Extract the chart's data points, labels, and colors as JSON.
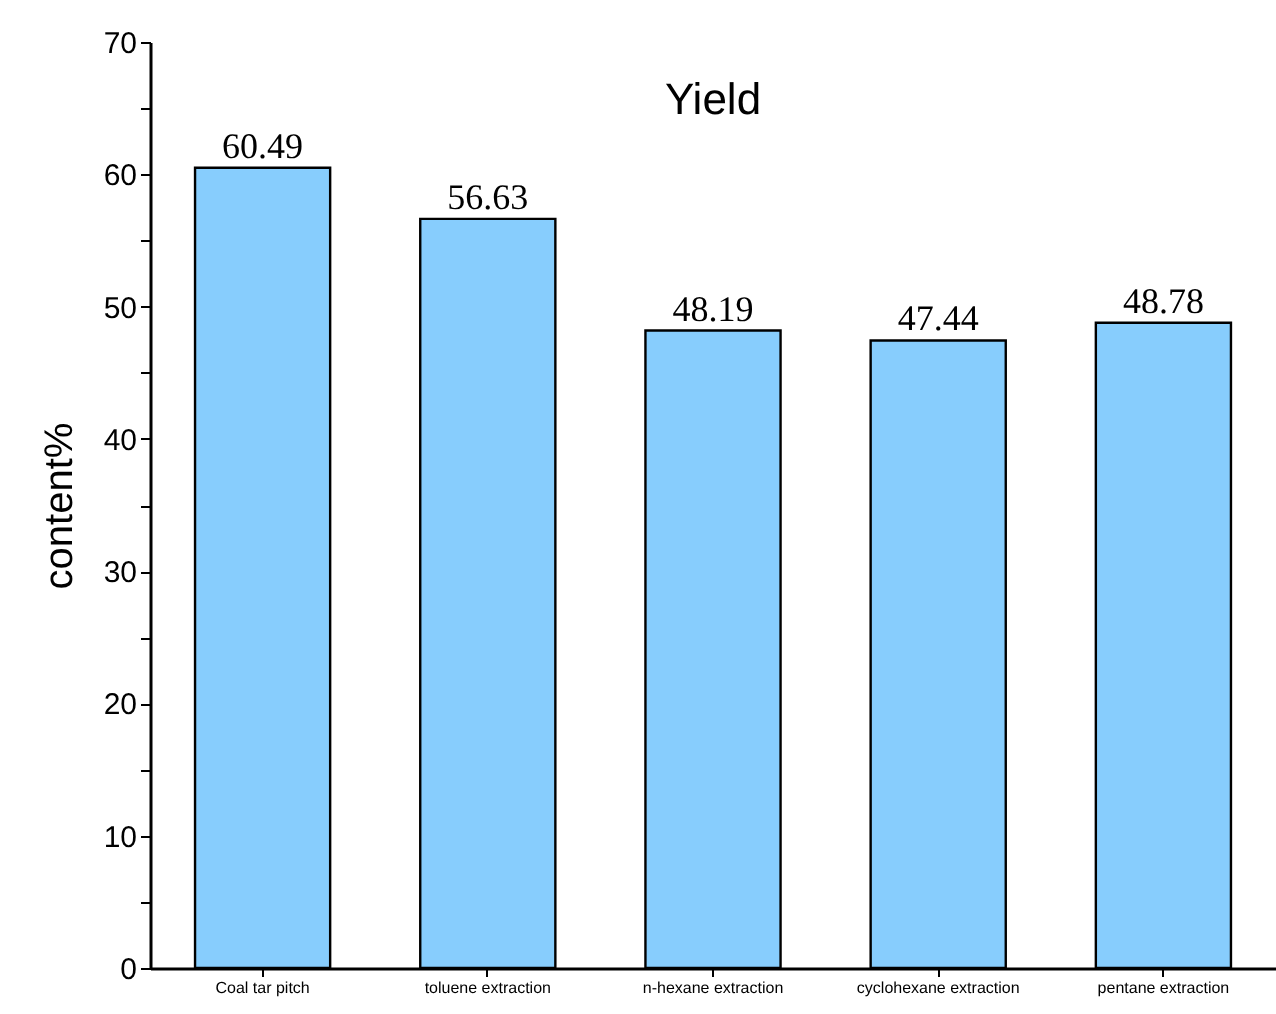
{
  "chart_data": {
    "type": "bar",
    "title": "Yield",
    "ylabel": "content%",
    "categories": [
      "Coal tar pitch",
      "toluene extraction",
      "n-hexane extraction",
      "cyclohexane extraction",
      "pentane extraction"
    ],
    "values": [
      60.49,
      56.63,
      48.19,
      47.44,
      48.78
    ],
    "color": "#87cdfd",
    "data_labels": true,
    "grid": false,
    "ylim": [
      0,
      70
    ],
    "yticks": [
      0,
      {
        "value": 5,
        "label": null
      },
      10,
      {
        "value": 15,
        "label": null
      },
      20,
      {
        "value": 25,
        "label": null
      },
      30,
      {
        "value": 35,
        "label": null
      },
      40,
      {
        "value": 45,
        "label": null
      },
      50,
      {
        "value": 55,
        "label": null
      },
      60,
      {
        "value": 65,
        "label": null
      },
      70
    ]
  }
}
